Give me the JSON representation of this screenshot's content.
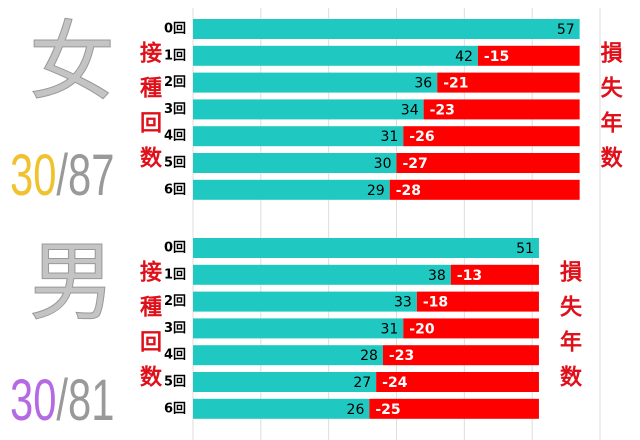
{
  "chart_data": [
    {
      "type": "bar",
      "big_label": "女",
      "ratio_highlight": "30",
      "ratio_rest": "/87",
      "ratio_color": "#f2c12e",
      "left_label": "接種回数",
      "right_label": "損失年数",
      "categories": [
        "0回",
        "1回",
        "2回",
        "3回",
        "4回",
        "5回",
        "6回"
      ],
      "series": [
        {
          "color": "#1fc9c1",
          "values": [
            57,
            42,
            36,
            34,
            31,
            30,
            29
          ]
        },
        {
          "color": "#ff0000",
          "values": [
            null,
            -15,
            -21,
            -23,
            -26,
            -27,
            -28
          ]
        }
      ],
      "xlim": [
        0,
        60
      ],
      "xticks": [
        0,
        10,
        20,
        30,
        40,
        50,
        60
      ],
      "grid": true
    },
    {
      "type": "bar",
      "big_label": "男",
      "ratio_highlight": "30",
      "ratio_rest": "/81",
      "ratio_color": "#b36ae2",
      "left_label": "接種回数",
      "right_label": "損失年数",
      "categories": [
        "0回",
        "1回",
        "2回",
        "3回",
        "4回",
        "5回",
        "6回"
      ],
      "series": [
        {
          "color": "#1fc9c1",
          "values": [
            51,
            38,
            33,
            31,
            28,
            27,
            26
          ]
        },
        {
          "color": "#ff0000",
          "values": [
            null,
            -13,
            -18,
            -20,
            -23,
            -24,
            -25
          ]
        }
      ],
      "xlim": [
        0,
        60
      ],
      "xticks": [
        0,
        10,
        20,
        30,
        40,
        50,
        60
      ],
      "grid": true
    }
  ]
}
